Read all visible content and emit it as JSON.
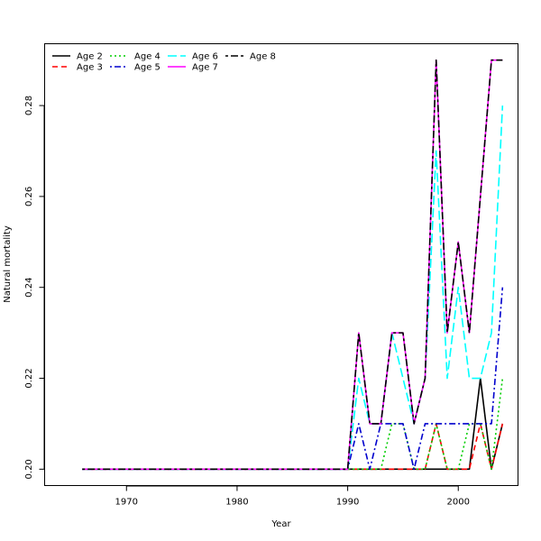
{
  "chart_data": {
    "type": "line",
    "xlabel": "Year",
    "ylabel": "Natural mortality",
    "xlim": [
      1962.6,
      2005.4
    ],
    "ylim": [
      0.1964,
      0.2936
    ],
    "xticks": [
      1970,
      1980,
      1990,
      2000
    ],
    "yticks": [
      0.2,
      0.22,
      0.24,
      0.26,
      0.28
    ],
    "ytick_labels": [
      "0.20",
      "0.22",
      "0.24",
      "0.26",
      "0.28"
    ],
    "legend_position": "top-left",
    "x": [
      1966,
      1967,
      1968,
      1969,
      1970,
      1971,
      1972,
      1973,
      1974,
      1975,
      1976,
      1977,
      1978,
      1979,
      1980,
      1981,
      1982,
      1983,
      1984,
      1985,
      1986,
      1987,
      1988,
      1989,
      1990,
      1991,
      1992,
      1993,
      1994,
      1995,
      1996,
      1997,
      1998,
      1999,
      2000,
      2001,
      2002,
      2003,
      2004
    ],
    "series": [
      {
        "name": "Age 2",
        "color": "#000000",
        "dash": "solid",
        "values": [
          0.2,
          0.2,
          0.2,
          0.2,
          0.2,
          0.2,
          0.2,
          0.2,
          0.2,
          0.2,
          0.2,
          0.2,
          0.2,
          0.2,
          0.2,
          0.2,
          0.2,
          0.2,
          0.2,
          0.2,
          0.2,
          0.2,
          0.2,
          0.2,
          0.2,
          0.2,
          0.2,
          0.2,
          0.2,
          0.2,
          0.2,
          0.2,
          0.2,
          0.2,
          0.2,
          0.2,
          0.22,
          0.2,
          0.21
        ]
      },
      {
        "name": "Age 3",
        "color": "#ff0000",
        "dash": "dashed",
        "values": [
          0.2,
          0.2,
          0.2,
          0.2,
          0.2,
          0.2,
          0.2,
          0.2,
          0.2,
          0.2,
          0.2,
          0.2,
          0.2,
          0.2,
          0.2,
          0.2,
          0.2,
          0.2,
          0.2,
          0.2,
          0.2,
          0.2,
          0.2,
          0.2,
          0.2,
          0.2,
          0.2,
          0.2,
          0.2,
          0.2,
          0.2,
          0.2,
          0.21,
          0.2,
          0.2,
          0.2,
          0.21,
          0.2,
          0.21
        ]
      },
      {
        "name": "Age 4",
        "color": "#00cd00",
        "dash": "dotted",
        "values": [
          0.2,
          0.2,
          0.2,
          0.2,
          0.2,
          0.2,
          0.2,
          0.2,
          0.2,
          0.2,
          0.2,
          0.2,
          0.2,
          0.2,
          0.2,
          0.2,
          0.2,
          0.2,
          0.2,
          0.2,
          0.2,
          0.2,
          0.2,
          0.2,
          0.2,
          0.2,
          0.2,
          0.2,
          0.21,
          0.21,
          0.2,
          0.2,
          0.21,
          0.2,
          0.2,
          0.21,
          0.21,
          0.2,
          0.22
        ]
      },
      {
        "name": "Age 5",
        "color": "#0000cd",
        "dash": "dotdash",
        "values": [
          0.2,
          0.2,
          0.2,
          0.2,
          0.2,
          0.2,
          0.2,
          0.2,
          0.2,
          0.2,
          0.2,
          0.2,
          0.2,
          0.2,
          0.2,
          0.2,
          0.2,
          0.2,
          0.2,
          0.2,
          0.2,
          0.2,
          0.2,
          0.2,
          0.2,
          0.21,
          0.2,
          0.21,
          0.21,
          0.21,
          0.2,
          0.21,
          0.21,
          0.21,
          0.21,
          0.21,
          0.21,
          0.21,
          0.24
        ]
      },
      {
        "name": "Age 6",
        "color": "#00ffff",
        "dash": "longdash",
        "values": [
          0.2,
          0.2,
          0.2,
          0.2,
          0.2,
          0.2,
          0.2,
          0.2,
          0.2,
          0.2,
          0.2,
          0.2,
          0.2,
          0.2,
          0.2,
          0.2,
          0.2,
          0.2,
          0.2,
          0.2,
          0.2,
          0.2,
          0.2,
          0.2,
          0.2,
          0.22,
          0.21,
          0.21,
          0.23,
          0.22,
          0.21,
          0.22,
          0.27,
          0.22,
          0.24,
          0.22,
          0.22,
          0.23,
          0.28
        ]
      },
      {
        "name": "Age 7",
        "color": "#ff00ff",
        "dash": "solid",
        "values": [
          0.2,
          0.2,
          0.2,
          0.2,
          0.2,
          0.2,
          0.2,
          0.2,
          0.2,
          0.2,
          0.2,
          0.2,
          0.2,
          0.2,
          0.2,
          0.2,
          0.2,
          0.2,
          0.2,
          0.2,
          0.2,
          0.2,
          0.2,
          0.2,
          0.2,
          0.23,
          0.21,
          0.21,
          0.23,
          0.23,
          0.21,
          0.22,
          0.29,
          0.23,
          0.25,
          0.23,
          0.26,
          0.29,
          0.29
        ]
      },
      {
        "name": "Age 8",
        "color": "#000000",
        "dash": "twodash",
        "values": [
          0.2,
          0.2,
          0.2,
          0.2,
          0.2,
          0.2,
          0.2,
          0.2,
          0.2,
          0.2,
          0.2,
          0.2,
          0.2,
          0.2,
          0.2,
          0.2,
          0.2,
          0.2,
          0.2,
          0.2,
          0.2,
          0.2,
          0.2,
          0.2,
          0.2,
          0.23,
          0.21,
          0.21,
          0.23,
          0.23,
          0.21,
          0.22,
          0.29,
          0.23,
          0.25,
          0.23,
          0.26,
          0.29,
          0.29
        ]
      }
    ]
  }
}
